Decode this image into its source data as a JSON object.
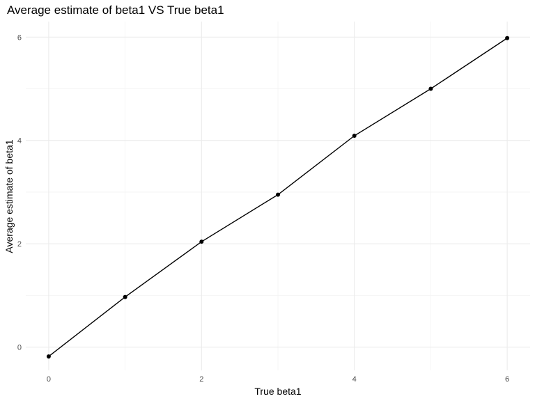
{
  "chart_data": {
    "type": "line",
    "title": "Average estimate of beta1 VS True beta1",
    "xlabel": "True beta1",
    "ylabel": "Average estimate of beta1",
    "x": [
      0,
      1,
      2,
      3,
      4,
      5,
      6
    ],
    "series": [
      {
        "values": [
          -0.18,
          0.97,
          2.04,
          2.95,
          4.09,
          5.0,
          5.98
        ]
      }
    ],
    "xlim": [
      -0.3,
      6.3
    ],
    "ylim": [
      -0.45,
      6.3
    ],
    "x_ticks": [
      0,
      2,
      4,
      6
    ],
    "y_ticks": [
      0,
      2,
      4,
      6
    ],
    "x_tick_labels": [
      "0",
      "2",
      "4",
      "6"
    ],
    "y_tick_labels": [
      "0",
      "2",
      "4",
      "6"
    ],
    "grid": true,
    "legend": "none",
    "colors": {
      "line": "#000000",
      "point": "#000000",
      "grid": "#ebebeb"
    }
  }
}
